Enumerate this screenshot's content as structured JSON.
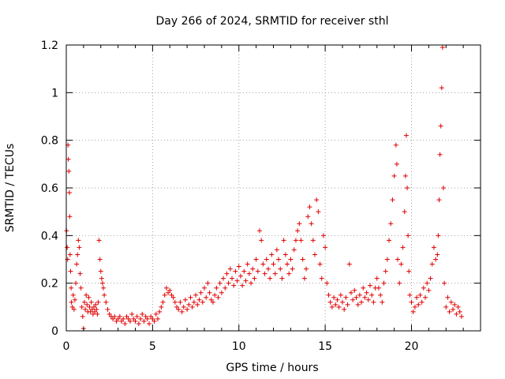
{
  "chart_data": {
    "type": "scatter",
    "title": "Day 266 of 2024, SRMTID for receiver sthl",
    "xlabel": "GPS time / hours",
    "ylabel": "SRMTID / TECUs",
    "xlim": [
      0,
      24
    ],
    "ylim": [
      0,
      1.2
    ],
    "x_ticks": [
      0,
      5,
      10,
      15,
      20
    ],
    "x_tick_labels": [
      "0",
      "5",
      "10",
      "15",
      "20"
    ],
    "y_ticks": [
      0,
      0.2,
      0.4,
      0.6,
      0.8,
      1.0,
      1.2
    ],
    "y_tick_labels": [
      "0",
      "0.2",
      "0.4",
      "0.6",
      "0.8",
      "1",
      "1.2"
    ],
    "grid": true,
    "marker": "+",
    "color": "#e00000",
    "series": [
      {
        "name": "SRMTID",
        "points": [
          [
            0.02,
            0.42
          ],
          [
            0.05,
            0.35
          ],
          [
            0.08,
            0.3
          ],
          [
            0.1,
            0.78
          ],
          [
            0.12,
            0.72
          ],
          [
            0.15,
            0.67
          ],
          [
            0.18,
            0.58
          ],
          [
            0.2,
            0.48
          ],
          [
            0.22,
            0.32
          ],
          [
            0.25,
            0.25
          ],
          [
            0.28,
            0.18
          ],
          [
            0.3,
            0.12
          ],
          [
            0.35,
            0.1
          ],
          [
            0.4,
            0.15
          ],
          [
            0.45,
            0.09
          ],
          [
            0.5,
            0.13
          ],
          [
            0.55,
            0.2
          ],
          [
            0.6,
            0.28
          ],
          [
            0.65,
            0.32
          ],
          [
            0.7,
            0.38
          ],
          [
            0.75,
            0.35
          ],
          [
            0.8,
            0.24
          ],
          [
            0.85,
            0.18
          ],
          [
            0.9,
            0.1
          ],
          [
            0.95,
            0.06
          ],
          [
            1.0,
            0.01
          ],
          [
            1.05,
            0.12
          ],
          [
            1.1,
            0.09
          ],
          [
            1.15,
            0.15
          ],
          [
            1.2,
            0.11
          ],
          [
            1.25,
            0.08
          ],
          [
            1.3,
            0.14
          ],
          [
            1.35,
            0.1
          ],
          [
            1.4,
            0.08
          ],
          [
            1.45,
            0.12
          ],
          [
            1.5,
            0.09
          ],
          [
            1.55,
            0.07
          ],
          [
            1.6,
            0.1
          ],
          [
            1.65,
            0.08
          ],
          [
            1.7,
            0.11
          ],
          [
            1.75,
            0.09
          ],
          [
            1.8,
            0.07
          ],
          [
            1.85,
            0.12
          ],
          [
            1.9,
            0.38
          ],
          [
            1.95,
            0.3
          ],
          [
            2.0,
            0.25
          ],
          [
            2.05,
            0.22
          ],
          [
            2.1,
            0.2
          ],
          [
            2.15,
            0.18
          ],
          [
            2.2,
            0.15
          ],
          [
            2.3,
            0.12
          ],
          [
            2.4,
            0.09
          ],
          [
            2.5,
            0.07
          ],
          [
            2.6,
            0.06
          ],
          [
            2.7,
            0.05
          ],
          [
            2.8,
            0.06
          ],
          [
            2.9,
            0.04
          ],
          [
            3.0,
            0.05
          ],
          [
            3.1,
            0.06
          ],
          [
            3.2,
            0.04
          ],
          [
            3.3,
            0.05
          ],
          [
            3.4,
            0.03
          ],
          [
            3.5,
            0.06
          ],
          [
            3.6,
            0.05
          ],
          [
            3.7,
            0.04
          ],
          [
            3.8,
            0.07
          ],
          [
            3.9,
            0.05
          ],
          [
            4.0,
            0.04
          ],
          [
            4.1,
            0.06
          ],
          [
            4.2,
            0.03
          ],
          [
            4.3,
            0.05
          ],
          [
            4.4,
            0.07
          ],
          [
            4.5,
            0.04
          ],
          [
            4.6,
            0.06
          ],
          [
            4.7,
            0.05
          ],
          [
            4.8,
            0.03
          ],
          [
            4.9,
            0.06
          ],
          [
            5.0,
            0.05
          ],
          [
            5.1,
            0.04
          ],
          [
            5.2,
            0.07
          ],
          [
            5.3,
            0.05
          ],
          [
            5.4,
            0.08
          ],
          [
            5.5,
            0.1
          ],
          [
            5.6,
            0.12
          ],
          [
            5.7,
            0.15
          ],
          [
            5.8,
            0.18
          ],
          [
            5.9,
            0.16
          ],
          [
            6.0,
            0.17
          ],
          [
            6.1,
            0.15
          ],
          [
            6.2,
            0.14
          ],
          [
            6.3,
            0.12
          ],
          [
            6.4,
            0.1
          ],
          [
            6.5,
            0.09
          ],
          [
            6.6,
            0.12
          ],
          [
            6.7,
            0.08
          ],
          [
            6.8,
            0.1
          ],
          [
            6.9,
            0.13
          ],
          [
            7.0,
            0.09
          ],
          [
            7.1,
            0.11
          ],
          [
            7.2,
            0.14
          ],
          [
            7.3,
            0.1
          ],
          [
            7.4,
            0.12
          ],
          [
            7.5,
            0.15
          ],
          [
            7.6,
            0.11
          ],
          [
            7.7,
            0.13
          ],
          [
            7.8,
            0.16
          ],
          [
            7.9,
            0.12
          ],
          [
            8.0,
            0.18
          ],
          [
            8.1,
            0.14
          ],
          [
            8.2,
            0.2
          ],
          [
            8.3,
            0.16
          ],
          [
            8.4,
            0.13
          ],
          [
            8.5,
            0.12
          ],
          [
            8.6,
            0.15
          ],
          [
            8.7,
            0.18
          ],
          [
            8.8,
            0.14
          ],
          [
            8.9,
            0.2
          ],
          [
            9.0,
            0.16
          ],
          [
            9.1,
            0.22
          ],
          [
            9.2,
            0.18
          ],
          [
            9.3,
            0.24
          ],
          [
            9.4,
            0.2
          ],
          [
            9.5,
            0.26
          ],
          [
            9.6,
            0.22
          ],
          [
            9.7,
            0.19
          ],
          [
            9.8,
            0.25
          ],
          [
            9.9,
            0.21
          ],
          [
            10.0,
            0.27
          ],
          [
            10.1,
            0.23
          ],
          [
            10.2,
            0.19
          ],
          [
            10.3,
            0.25
          ],
          [
            10.4,
            0.21
          ],
          [
            10.5,
            0.28
          ],
          [
            10.6,
            0.24
          ],
          [
            10.7,
            0.2
          ],
          [
            10.8,
            0.26
          ],
          [
            10.9,
            0.22
          ],
          [
            11.0,
            0.3
          ],
          [
            11.1,
            0.25
          ],
          [
            11.2,
            0.42
          ],
          [
            11.3,
            0.38
          ],
          [
            11.4,
            0.28
          ],
          [
            11.5,
            0.24
          ],
          [
            11.6,
            0.3
          ],
          [
            11.7,
            0.26
          ],
          [
            11.8,
            0.22
          ],
          [
            11.9,
            0.32
          ],
          [
            12.0,
            0.28
          ],
          [
            12.1,
            0.24
          ],
          [
            12.2,
            0.34
          ],
          [
            12.3,
            0.3
          ],
          [
            12.4,
            0.26
          ],
          [
            12.5,
            0.22
          ],
          [
            12.6,
            0.38
          ],
          [
            12.7,
            0.32
          ],
          [
            12.8,
            0.28
          ],
          [
            12.9,
            0.24
          ],
          [
            13.0,
            0.3
          ],
          [
            13.1,
            0.26
          ],
          [
            13.2,
            0.34
          ],
          [
            13.3,
            0.38
          ],
          [
            13.4,
            0.42
          ],
          [
            13.5,
            0.45
          ],
          [
            13.6,
            0.38
          ],
          [
            13.7,
            0.3
          ],
          [
            13.8,
            0.22
          ],
          [
            13.9,
            0.26
          ],
          [
            14.0,
            0.48
          ],
          [
            14.1,
            0.52
          ],
          [
            14.2,
            0.45
          ],
          [
            14.3,
            0.38
          ],
          [
            14.4,
            0.32
          ],
          [
            14.5,
            0.55
          ],
          [
            14.6,
            0.5
          ],
          [
            14.7,
            0.28
          ],
          [
            14.8,
            0.22
          ],
          [
            14.9,
            0.4
          ],
          [
            15.0,
            0.35
          ],
          [
            15.1,
            0.2
          ],
          [
            15.2,
            0.15
          ],
          [
            15.3,
            0.12
          ],
          [
            15.4,
            0.1
          ],
          [
            15.5,
            0.14
          ],
          [
            15.6,
            0.11
          ],
          [
            15.7,
            0.13
          ],
          [
            15.8,
            0.1
          ],
          [
            15.9,
            0.15
          ],
          [
            16.0,
            0.12
          ],
          [
            16.1,
            0.09
          ],
          [
            16.2,
            0.14
          ],
          [
            16.3,
            0.11
          ],
          [
            16.4,
            0.28
          ],
          [
            16.5,
            0.16
          ],
          [
            16.6,
            0.13
          ],
          [
            16.7,
            0.17
          ],
          [
            16.8,
            0.14
          ],
          [
            16.9,
            0.11
          ],
          [
            17.0,
            0.15
          ],
          [
            17.1,
            0.12
          ],
          [
            17.2,
            0.18
          ],
          [
            17.3,
            0.14
          ],
          [
            17.4,
            0.16
          ],
          [
            17.5,
            0.13
          ],
          [
            17.6,
            0.19
          ],
          [
            17.7,
            0.15
          ],
          [
            17.8,
            0.12
          ],
          [
            17.9,
            0.18
          ],
          [
            18.0,
            0.22
          ],
          [
            18.1,
            0.18
          ],
          [
            18.2,
            0.15
          ],
          [
            18.3,
            0.12
          ],
          [
            18.4,
            0.2
          ],
          [
            18.5,
            0.25
          ],
          [
            18.6,
            0.3
          ],
          [
            18.7,
            0.38
          ],
          [
            18.8,
            0.45
          ],
          [
            18.9,
            0.55
          ],
          [
            19.0,
            0.65
          ],
          [
            19.1,
            0.78
          ],
          [
            19.15,
            0.7
          ],
          [
            19.2,
            0.3
          ],
          [
            19.3,
            0.2
          ],
          [
            19.4,
            0.28
          ],
          [
            19.5,
            0.35
          ],
          [
            19.6,
            0.5
          ],
          [
            19.65,
            0.65
          ],
          [
            19.7,
            0.82
          ],
          [
            19.75,
            0.6
          ],
          [
            19.8,
            0.4
          ],
          [
            19.85,
            0.25
          ],
          [
            19.9,
            0.15
          ],
          [
            20.0,
            0.12
          ],
          [
            20.1,
            0.08
          ],
          [
            20.2,
            0.1
          ],
          [
            20.3,
            0.14
          ],
          [
            20.4,
            0.11
          ],
          [
            20.5,
            0.15
          ],
          [
            20.6,
            0.12
          ],
          [
            20.7,
            0.18
          ],
          [
            20.8,
            0.14
          ],
          [
            20.9,
            0.2
          ],
          [
            21.0,
            0.17
          ],
          [
            21.1,
            0.22
          ],
          [
            21.2,
            0.28
          ],
          [
            21.3,
            0.35
          ],
          [
            21.4,
            0.3
          ],
          [
            21.5,
            0.32
          ],
          [
            21.55,
            0.4
          ],
          [
            21.6,
            0.55
          ],
          [
            21.65,
            0.74
          ],
          [
            21.7,
            0.86
          ],
          [
            21.75,
            1.02
          ],
          [
            21.8,
            1.19
          ],
          [
            21.85,
            0.6
          ],
          [
            21.9,
            0.2
          ],
          [
            22.0,
            0.1
          ],
          [
            22.1,
            0.14
          ],
          [
            22.2,
            0.08
          ],
          [
            22.3,
            0.12
          ],
          [
            22.4,
            0.09
          ],
          [
            22.5,
            0.11
          ],
          [
            22.6,
            0.07
          ],
          [
            22.7,
            0.1
          ],
          [
            22.8,
            0.08
          ],
          [
            22.9,
            0.06
          ]
        ]
      }
    ]
  }
}
